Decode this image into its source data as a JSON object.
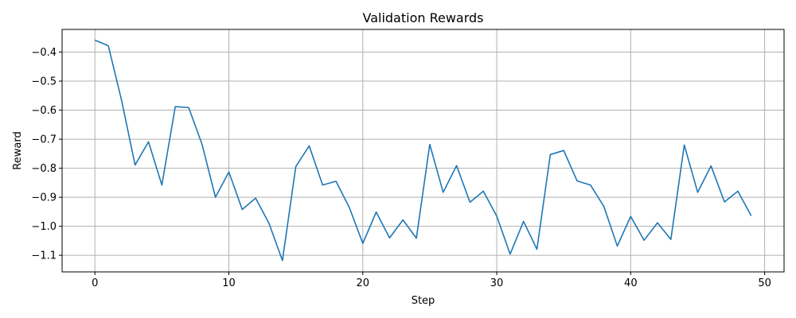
{
  "chart_data": {
    "type": "line",
    "title": "Validation Rewards",
    "xlabel": "Step",
    "ylabel": "Reward",
    "xlim": [
      -2.45,
      51.45
    ],
    "ylim": [
      -1.157,
      -0.322
    ],
    "xticks": [
      0,
      10,
      20,
      30,
      40,
      50
    ],
    "yticks": [
      -1.1,
      -1.0,
      -0.9,
      -0.8,
      -0.7,
      -0.6,
      -0.5,
      -0.4
    ],
    "xtick_labels": [
      "0",
      "10",
      "20",
      "30",
      "40",
      "50"
    ],
    "ytick_labels": [
      "−1.1",
      "−1.0",
      "−0.9",
      "−0.8",
      "−0.7",
      "−0.6",
      "−0.5",
      "−0.4"
    ],
    "grid": true,
    "legend": "none",
    "line_color": "#1f77b4",
    "series": [
      {
        "x": [
          0,
          1,
          2,
          3,
          4,
          5,
          6,
          7,
          8,
          9,
          10,
          11,
          12,
          13,
          14,
          15,
          16,
          17,
          18,
          19,
          20,
          21,
          22,
          23,
          24,
          25,
          26,
          27,
          28,
          29,
          30,
          31,
          32,
          33,
          34,
          35,
          36,
          37,
          38,
          39,
          40,
          41,
          42,
          43,
          44,
          45,
          46,
          47,
          48,
          49
        ],
        "values": [
          -0.359,
          -0.378,
          -0.568,
          -0.789,
          -0.709,
          -0.858,
          -0.588,
          -0.591,
          -0.718,
          -0.9,
          -0.813,
          -0.942,
          -0.903,
          -0.99,
          -1.118,
          -0.794,
          -0.723,
          -0.858,
          -0.845,
          -0.936,
          -1.059,
          -0.951,
          -1.04,
          -0.978,
          -1.041,
          -0.718,
          -0.883,
          -0.791,
          -0.917,
          -0.879,
          -0.965,
          -1.096,
          -0.983,
          -1.079,
          -0.753,
          -0.739,
          -0.844,
          -0.858,
          -0.932,
          -1.068,
          -0.966,
          -1.048,
          -0.988,
          -1.045,
          -0.72,
          -0.883,
          -0.792,
          -0.916,
          -0.879,
          -0.964
        ]
      }
    ]
  }
}
